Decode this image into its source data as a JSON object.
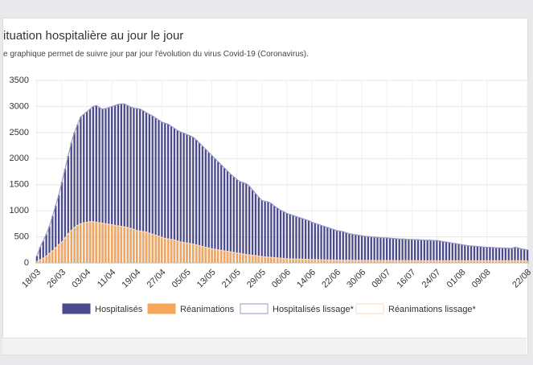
{
  "header": {
    "title": "ituation hospitalière au jour le jour",
    "subtitle": "e graphique permet de suivre jour par jour l'évolution du virus Covid-19 (Coronavirus)."
  },
  "chart_data": {
    "type": "bar",
    "ylim": [
      0,
      3500
    ],
    "yticks": [
      0,
      500,
      1000,
      1500,
      2000,
      2500,
      3000,
      3500
    ],
    "grid": true,
    "legend": "bottom",
    "categories": [
      "18/03",
      null,
      null,
      null,
      null,
      null,
      null,
      null,
      "26/03",
      null,
      null,
      null,
      null,
      null,
      null,
      null,
      "03/04",
      null,
      null,
      null,
      null,
      null,
      null,
      null,
      "11/04",
      null,
      null,
      null,
      null,
      null,
      null,
      null,
      "19/04",
      null,
      null,
      null,
      null,
      null,
      null,
      null,
      "27/04",
      null,
      null,
      null,
      null,
      null,
      null,
      null,
      "05/05",
      null,
      null,
      null,
      null,
      null,
      null,
      null,
      "13/05",
      null,
      null,
      null,
      null,
      null,
      null,
      null,
      "21/05",
      null,
      null,
      null,
      null,
      null,
      null,
      null,
      "29/05",
      null,
      null,
      null,
      null,
      null,
      null,
      null,
      "06/06",
      null,
      null,
      null,
      null,
      null,
      null,
      null,
      "14/06",
      null,
      null,
      null,
      null,
      null,
      null,
      null,
      "22/06",
      null,
      null,
      null,
      null,
      null,
      null,
      null,
      "30/06",
      null,
      null,
      null,
      null,
      null,
      null,
      null,
      "08/07",
      null,
      null,
      null,
      null,
      null,
      null,
      null,
      "16/07",
      null,
      null,
      null,
      null,
      null,
      null,
      null,
      "24/07",
      null,
      null,
      null,
      null,
      null,
      null,
      null,
      "01/08",
      null,
      null,
      null,
      null,
      null,
      null,
      null,
      "09/08",
      null,
      null,
      null,
      null,
      null,
      null,
      null,
      null,
      null,
      null,
      null,
      null,
      "22/08"
    ],
    "series": [
      {
        "name": "Hospitalisés",
        "type": "bar",
        "color": "#4a4a8c",
        "values": [
          130,
          300,
          420,
          550,
          700,
          900,
          1100,
          1300,
          1550,
          1800,
          2050,
          2300,
          2500,
          2650,
          2800,
          2850,
          2900,
          2950,
          3000,
          3020,
          2980,
          2950,
          2960,
          2980,
          3000,
          3020,
          3040,
          3050,
          3050,
          3020,
          2990,
          2970,
          2960,
          2950,
          2920,
          2880,
          2850,
          2820,
          2780,
          2740,
          2700,
          2680,
          2660,
          2620,
          2580,
          2540,
          2510,
          2490,
          2460,
          2440,
          2410,
          2360,
          2300,
          2240,
          2180,
          2120,
          2060,
          2000,
          1940,
          1880,
          1820,
          1760,
          1700,
          1650,
          1600,
          1560,
          1540,
          1520,
          1470,
          1400,
          1330,
          1260,
          1200,
          1180,
          1170,
          1140,
          1090,
          1050,
          1010,
          980,
          950,
          930,
          910,
          890,
          870,
          850,
          830,
          810,
          780,
          760,
          740,
          720,
          700,
          680,
          660,
          640,
          620,
          610,
          600,
          580,
          560,
          550,
          540,
          530,
          520,
          510,
          505,
          500,
          495,
          490,
          485,
          480,
          480,
          475,
          470,
          465,
          460,
          460,
          455,
          450,
          450,
          445,
          445,
          440,
          440,
          435,
          435,
          430,
          430,
          420,
          410,
          400,
          390,
          380,
          370,
          360,
          350,
          340,
          330,
          325,
          320,
          315,
          310,
          305,
          300,
          300,
          295,
          290,
          290,
          285,
          285,
          280,
          280,
          300,
          290,
          270,
          260,
          250
        ]
      },
      {
        "name": "Réanimations",
        "type": "bar",
        "color": "#f6a75a",
        "values": [
          30,
          60,
          90,
          130,
          180,
          230,
          290,
          350,
          400,
          480,
          560,
          620,
          680,
          720,
          750,
          770,
          780,
          790,
          790,
          780,
          770,
          760,
          750,
          740,
          730,
          720,
          710,
          700,
          690,
          680,
          660,
          640,
          620,
          610,
          600,
          590,
          570,
          550,
          530,
          510,
          490,
          470,
          460,
          450,
          440,
          420,
          400,
          390,
          380,
          370,
          360,
          345,
          330,
          315,
          300,
          285,
          270,
          260,
          250,
          240,
          230,
          220,
          210,
          200,
          190,
          180,
          170,
          160,
          150,
          145,
          140,
          130,
          120,
          115,
          110,
          105,
          100,
          95,
          90,
          85,
          80,
          78,
          76,
          74,
          72,
          70,
          68,
          66,
          64,
          62,
          60,
          58,
          57,
          56,
          55,
          54,
          53,
          52,
          51,
          50,
          50,
          49,
          49,
          48,
          48,
          47,
          47,
          46,
          46,
          45,
          45,
          45,
          44,
          44,
          44,
          43,
          43,
          43,
          42,
          42,
          42,
          42,
          41,
          41,
          41,
          41,
          40,
          40,
          40,
          40,
          40,
          40,
          40,
          40,
          40,
          40,
          40,
          40,
          40,
          40,
          40,
          40,
          40,
          40,
          40,
          40,
          40,
          40,
          40,
          40,
          40,
          40,
          40,
          40,
          40,
          40,
          40,
          40
        ]
      },
      {
        "name": "Hospitalisés lissage*",
        "type": "line",
        "color": "#9b97c9",
        "values": [
          130,
          300,
          420,
          550,
          700,
          900,
          1100,
          1300,
          1550,
          1800,
          2050,
          2300,
          2500,
          2650,
          2800,
          2850,
          2900,
          2950,
          3000,
          3020,
          2980,
          2950,
          2960,
          2980,
          3000,
          3020,
          3040,
          3050,
          3050,
          3020,
          2990,
          2970,
          2960,
          2950,
          2920,
          2880,
          2850,
          2820,
          2780,
          2740,
          2700,
          2680,
          2660,
          2620,
          2580,
          2540,
          2510,
          2490,
          2460,
          2440,
          2410,
          2360,
          2300,
          2240,
          2180,
          2120,
          2060,
          2000,
          1940,
          1880,
          1820,
          1760,
          1700,
          1650,
          1600,
          1560,
          1540,
          1520,
          1470,
          1400,
          1330,
          1260,
          1200,
          1180,
          1170,
          1140,
          1090,
          1050,
          1010,
          980,
          950,
          930,
          910,
          890,
          870,
          850,
          830,
          810,
          780,
          760,
          740,
          720,
          700,
          680,
          660,
          640,
          620,
          610,
          600,
          580,
          560,
          550,
          540,
          530,
          520,
          510,
          505,
          500,
          495,
          490,
          485,
          480,
          480,
          475,
          470,
          465,
          460,
          460,
          455,
          450,
          450,
          445,
          445,
          440,
          440,
          435,
          435,
          430,
          430,
          420,
          410,
          400,
          390,
          380,
          370,
          360,
          350,
          340,
          330,
          325,
          320,
          315,
          310,
          305,
          300,
          300,
          295,
          290,
          290,
          285,
          285,
          280,
          280,
          300,
          290,
          270,
          260,
          250
        ]
      },
      {
        "name": "Réanimations lissage*",
        "type": "line",
        "color": "#f8d9b8",
        "values": [
          30,
          60,
          90,
          130,
          180,
          230,
          290,
          350,
          400,
          480,
          560,
          620,
          680,
          720,
          750,
          770,
          780,
          790,
          790,
          780,
          770,
          760,
          750,
          740,
          730,
          720,
          710,
          700,
          690,
          680,
          660,
          640,
          620,
          610,
          600,
          590,
          570,
          550,
          530,
          510,
          490,
          470,
          460,
          450,
          440,
          420,
          400,
          390,
          380,
          370,
          360,
          345,
          330,
          315,
          300,
          285,
          270,
          260,
          250,
          240,
          230,
          220,
          210,
          200,
          190,
          180,
          170,
          160,
          150,
          145,
          140,
          130,
          120,
          115,
          110,
          105,
          100,
          95,
          90,
          85,
          80,
          78,
          76,
          74,
          72,
          70,
          68,
          66,
          64,
          62,
          60,
          58,
          57,
          56,
          55,
          54,
          53,
          52,
          51,
          50,
          50,
          49,
          49,
          48,
          48,
          47,
          47,
          46,
          46,
          45,
          45,
          45,
          44,
          44,
          44,
          43,
          43,
          43,
          42,
          42,
          42,
          42,
          41,
          41,
          41,
          41,
          40,
          40,
          40,
          40,
          40,
          40,
          40,
          40,
          40,
          40,
          40,
          40,
          40,
          40,
          40,
          40,
          40,
          40,
          40,
          40,
          40,
          40,
          40,
          40,
          40,
          40,
          40,
          40,
          40,
          40,
          40,
          40
        ]
      }
    ]
  }
}
